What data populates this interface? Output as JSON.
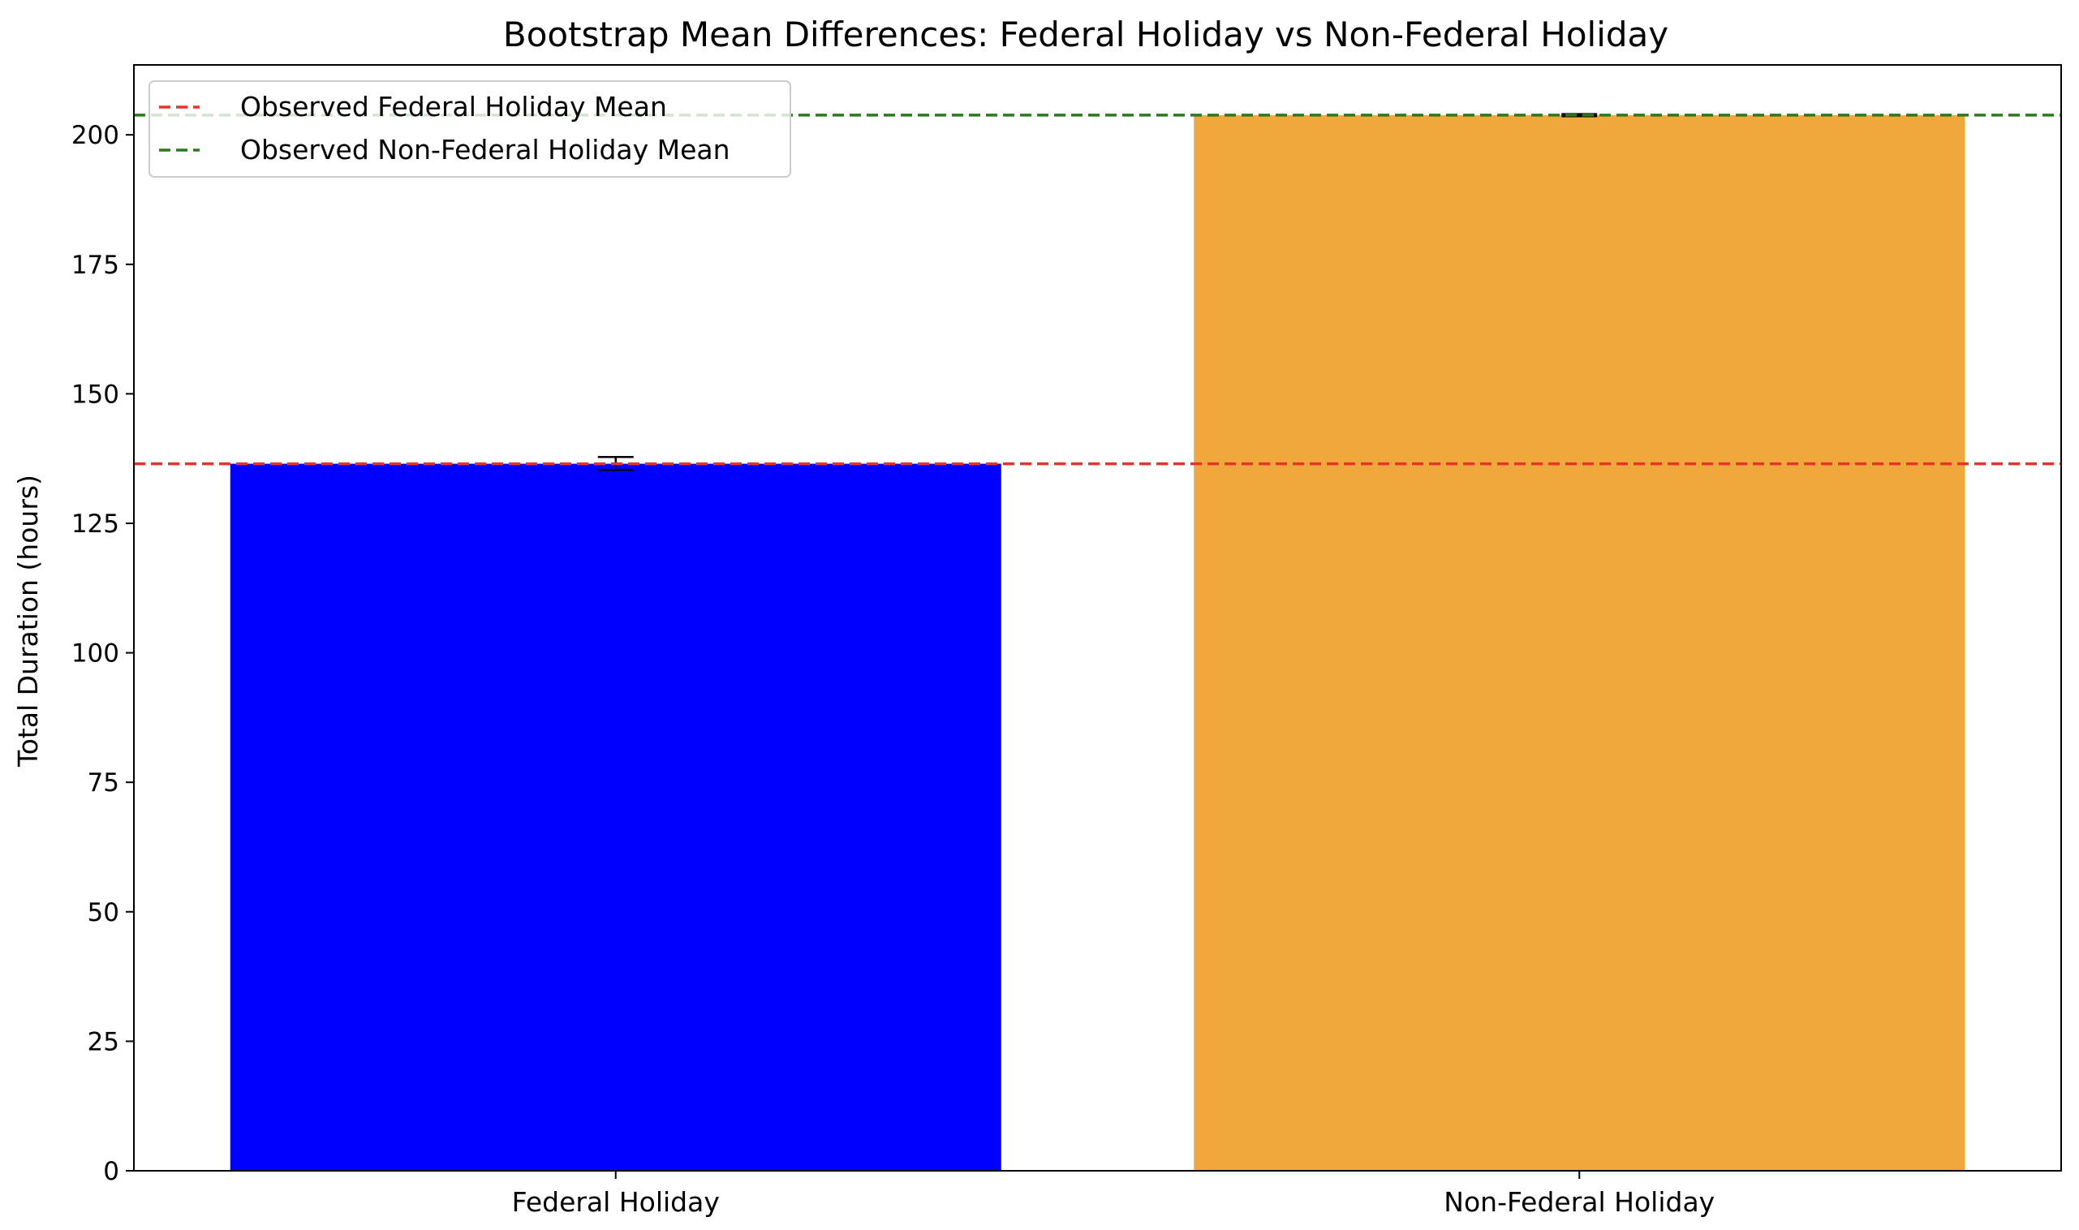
{
  "chart_data": {
    "type": "bar",
    "title": "Bootstrap Mean Differences: Federal Holiday vs Non-Federal Holiday",
    "xlabel": "",
    "ylabel": "Total Duration (hours)",
    "ylim": [
      0,
      213.5
    ],
    "yticks": [
      0,
      25,
      50,
      75,
      100,
      125,
      150,
      175,
      200
    ],
    "grid": false,
    "categories": [
      "Federal Holiday",
      "Non-Federal Holiday"
    ],
    "values": [
      136.5,
      203.8
    ],
    "error_bars": [
      {
        "low": 135.3,
        "high": 137.8
      },
      {
        "low": 203.6,
        "high": 204.0
      }
    ],
    "bar_colors": [
      "#0000ff",
      "#f0a73c"
    ],
    "reference_lines": [
      {
        "label": "Observed Federal Holiday Mean",
        "value": 136.5,
        "color": "#e8322b",
        "style": "dashed"
      },
      {
        "label": "Observed Non-Federal Holiday Mean",
        "value": 203.8,
        "color": "#2a7a1e",
        "style": "dashed"
      }
    ],
    "legend_position": "upper-left"
  }
}
